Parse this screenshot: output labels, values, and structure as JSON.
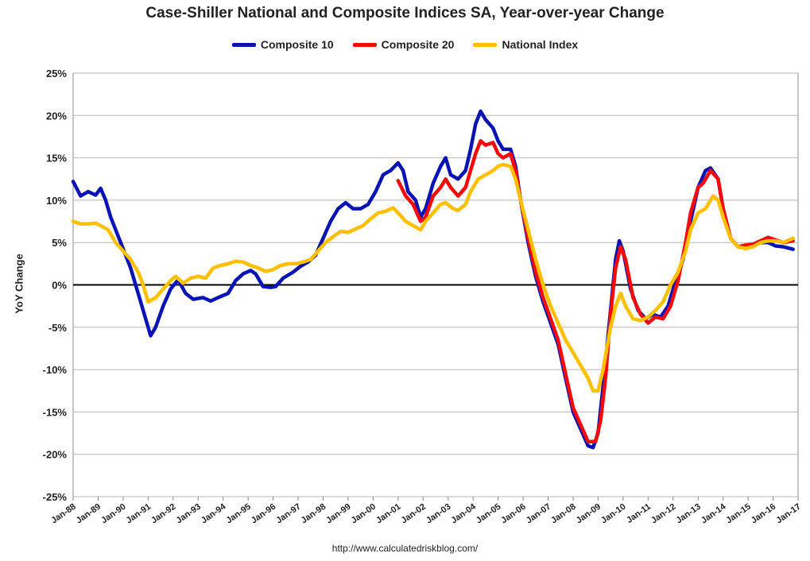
{
  "chart_data": {
    "type": "line",
    "title": "Case-Shiller National and Composite Indices SA, Year-over-year Change",
    "ylabel": "YoY Change",
    "xlabel": "",
    "source": "http://www.calculatedriskblog.com/",
    "ylim": [
      -25,
      25
    ],
    "xlim": [
      1988.0,
      2017.0
    ],
    "y_ticks": [
      "25%",
      "20%",
      "15%",
      "10%",
      "5%",
      "0%",
      "-5%",
      "-10%",
      "-15%",
      "-20%",
      "-25%"
    ],
    "x_ticks": [
      "Jan-88",
      "Jan-89",
      "Jan-90",
      "Jan-91",
      "Jan-92",
      "Jan-93",
      "Jan-94",
      "Jan-95",
      "Jan-96",
      "Jan-97",
      "Jan-98",
      "Jan-99",
      "Jan-00",
      "Jan-01",
      "Jan-02",
      "Jan-03",
      "Jan-04",
      "Jan-05",
      "Jan-06",
      "Jan-07",
      "Jan-08",
      "Jan-09",
      "Jan-10",
      "Jan-11",
      "Jan-12",
      "Jan-13",
      "Jan-14",
      "Jan-15",
      "Jan-16",
      "Jan-17"
    ],
    "grid": {
      "horizontal": true,
      "vertical": false
    },
    "legend_position": "top-center",
    "series": [
      {
        "name": "Composite 10",
        "color": "#0a14b4",
        "points": [
          [
            1988.0,
            12.2
          ],
          [
            1988.3,
            10.5
          ],
          [
            1988.6,
            11.0
          ],
          [
            1988.9,
            10.6
          ],
          [
            1989.1,
            11.4
          ],
          [
            1989.3,
            10.0
          ],
          [
            1989.5,
            8.0
          ],
          [
            1989.9,
            5.0
          ],
          [
            1990.3,
            2.0
          ],
          [
            1990.6,
            -1.0
          ],
          [
            1990.9,
            -4.0
          ],
          [
            1991.1,
            -6.0
          ],
          [
            1991.3,
            -5.0
          ],
          [
            1991.6,
            -2.5
          ],
          [
            1991.9,
            -0.5
          ],
          [
            1992.2,
            0.6
          ],
          [
            1992.5,
            -1.0
          ],
          [
            1992.8,
            -1.7
          ],
          [
            1993.2,
            -1.5
          ],
          [
            1993.5,
            -1.9
          ],
          [
            1993.8,
            -1.5
          ],
          [
            1994.2,
            -1.0
          ],
          [
            1994.5,
            0.5
          ],
          [
            1994.8,
            1.3
          ],
          [
            1995.1,
            1.7
          ],
          [
            1995.3,
            1.3
          ],
          [
            1995.6,
            -0.2
          ],
          [
            1995.9,
            -0.3
          ],
          [
            1996.1,
            -0.2
          ],
          [
            1996.4,
            0.8
          ],
          [
            1996.8,
            1.5
          ],
          [
            1997.1,
            2.2
          ],
          [
            1997.4,
            2.7
          ],
          [
            1997.7,
            3.5
          ],
          [
            1998.0,
            5.5
          ],
          [
            1998.3,
            7.5
          ],
          [
            1998.6,
            9.0
          ],
          [
            1998.9,
            9.7
          ],
          [
            1999.2,
            9.0
          ],
          [
            1999.5,
            9.0
          ],
          [
            1999.8,
            9.5
          ],
          [
            2000.1,
            11.0
          ],
          [
            2000.4,
            13.0
          ],
          [
            2000.7,
            13.5
          ],
          [
            2001.0,
            14.4
          ],
          [
            2001.2,
            13.5
          ],
          [
            2001.4,
            11.0
          ],
          [
            2001.7,
            10.0
          ],
          [
            2001.9,
            8.0
          ],
          [
            2002.1,
            9.0
          ],
          [
            2002.4,
            12.0
          ],
          [
            2002.7,
            14.0
          ],
          [
            2002.9,
            15.0
          ],
          [
            2003.1,
            13.0
          ],
          [
            2003.4,
            12.5
          ],
          [
            2003.7,
            13.5
          ],
          [
            2003.9,
            16.0
          ],
          [
            2004.1,
            19.0
          ],
          [
            2004.3,
            20.5
          ],
          [
            2004.5,
            19.5
          ],
          [
            2004.8,
            18.5
          ],
          [
            2005.0,
            17.0
          ],
          [
            2005.2,
            16.0
          ],
          [
            2005.5,
            16.0
          ],
          [
            2005.7,
            14.0
          ],
          [
            2005.9,
            10.0
          ],
          [
            2006.2,
            5.0
          ],
          [
            2006.5,
            1.0
          ],
          [
            2006.8,
            -2.0
          ],
          [
            2007.1,
            -4.5
          ],
          [
            2007.4,
            -7.0
          ],
          [
            2007.7,
            -11.0
          ],
          [
            2008.0,
            -15.0
          ],
          [
            2008.3,
            -17.0
          ],
          [
            2008.6,
            -19.0
          ],
          [
            2008.8,
            -19.2
          ],
          [
            2009.0,
            -17.5
          ],
          [
            2009.2,
            -12.0
          ],
          [
            2009.5,
            -3.0
          ],
          [
            2009.7,
            3.0
          ],
          [
            2009.85,
            5.2
          ],
          [
            2010.0,
            4.0
          ],
          [
            2010.3,
            -0.5
          ],
          [
            2010.6,
            -3.0
          ],
          [
            2010.9,
            -4.0
          ],
          [
            2011.2,
            -3.5
          ],
          [
            2011.5,
            -3.8
          ],
          [
            2011.8,
            -2.5
          ],
          [
            2012.1,
            0.5
          ],
          [
            2012.4,
            3.0
          ],
          [
            2012.7,
            7.5
          ],
          [
            2013.0,
            11.5
          ],
          [
            2013.3,
            13.5
          ],
          [
            2013.5,
            13.8
          ],
          [
            2013.8,
            12.5
          ],
          [
            2014.0,
            9.0
          ],
          [
            2014.3,
            5.5
          ],
          [
            2014.6,
            4.5
          ],
          [
            2014.9,
            4.5
          ],
          [
            2015.2,
            4.6
          ],
          [
            2015.5,
            5.0
          ],
          [
            2015.8,
            5.0
          ],
          [
            2016.1,
            4.6
          ],
          [
            2016.4,
            4.5
          ],
          [
            2016.8,
            4.2
          ]
        ]
      },
      {
        "name": "Composite 20",
        "color": "#f50a0a",
        "points": [
          [
            2001.0,
            12.3
          ],
          [
            2001.3,
            10.5
          ],
          [
            2001.6,
            9.5
          ],
          [
            2001.9,
            7.5
          ],
          [
            2002.1,
            8.0
          ],
          [
            2002.4,
            10.5
          ],
          [
            2002.7,
            11.5
          ],
          [
            2002.9,
            12.5
          ],
          [
            2003.1,
            11.5
          ],
          [
            2003.4,
            10.5
          ],
          [
            2003.7,
            11.5
          ],
          [
            2003.9,
            13.5
          ],
          [
            2004.1,
            15.5
          ],
          [
            2004.3,
            17.0
          ],
          [
            2004.5,
            16.5
          ],
          [
            2004.8,
            16.8
          ],
          [
            2005.0,
            15.5
          ],
          [
            2005.2,
            15.0
          ],
          [
            2005.5,
            15.5
          ],
          [
            2005.7,
            13.5
          ],
          [
            2005.9,
            10.0
          ],
          [
            2006.2,
            5.5
          ],
          [
            2006.5,
            1.5
          ],
          [
            2006.8,
            -1.5
          ],
          [
            2007.1,
            -4.0
          ],
          [
            2007.4,
            -6.5
          ],
          [
            2007.7,
            -10.5
          ],
          [
            2008.0,
            -14.5
          ],
          [
            2008.3,
            -16.5
          ],
          [
            2008.6,
            -18.5
          ],
          [
            2008.9,
            -18.5
          ],
          [
            2009.1,
            -16.0
          ],
          [
            2009.3,
            -11.0
          ],
          [
            2009.5,
            -3.5
          ],
          [
            2009.7,
            2.0
          ],
          [
            2009.9,
            4.5
          ],
          [
            2010.1,
            3.0
          ],
          [
            2010.4,
            -1.5
          ],
          [
            2010.7,
            -3.5
          ],
          [
            2011.0,
            -4.5
          ],
          [
            2011.3,
            -3.8
          ],
          [
            2011.6,
            -4.0
          ],
          [
            2011.9,
            -2.5
          ],
          [
            2012.2,
            0.5
          ],
          [
            2012.5,
            5.0
          ],
          [
            2012.7,
            8.5
          ],
          [
            2013.0,
            11.5
          ],
          [
            2013.2,
            12.0
          ],
          [
            2013.5,
            13.5
          ],
          [
            2013.8,
            12.5
          ],
          [
            2014.0,
            9.0
          ],
          [
            2014.3,
            5.5
          ],
          [
            2014.6,
            4.5
          ],
          [
            2014.9,
            4.7
          ],
          [
            2015.2,
            4.8
          ],
          [
            2015.5,
            5.2
          ],
          [
            2015.8,
            5.6
          ],
          [
            2016.1,
            5.3
          ],
          [
            2016.4,
            5.0
          ],
          [
            2016.8,
            5.2
          ]
        ]
      },
      {
        "name": "National Index",
        "color": "#ffc000",
        "points": [
          [
            1988.0,
            7.5
          ],
          [
            1988.3,
            7.2
          ],
          [
            1988.6,
            7.2
          ],
          [
            1988.9,
            7.3
          ],
          [
            1989.1,
            7.0
          ],
          [
            1989.4,
            6.5
          ],
          [
            1989.7,
            5.0
          ],
          [
            1990.0,
            4.0
          ],
          [
            1990.3,
            3.0
          ],
          [
            1990.6,
            1.5
          ],
          [
            1990.8,
            0.0
          ],
          [
            1991.0,
            -2.0
          ],
          [
            1991.3,
            -1.5
          ],
          [
            1991.6,
            -0.5
          ],
          [
            1991.9,
            0.5
          ],
          [
            1992.1,
            1.0
          ],
          [
            1992.4,
            0.2
          ],
          [
            1992.7,
            0.8
          ],
          [
            1993.0,
            1.0
          ],
          [
            1993.3,
            0.8
          ],
          [
            1993.6,
            2.0
          ],
          [
            1993.9,
            2.3
          ],
          [
            1994.2,
            2.5
          ],
          [
            1994.5,
            2.8
          ],
          [
            1994.8,
            2.7
          ],
          [
            1995.1,
            2.3
          ],
          [
            1995.4,
            2.0
          ],
          [
            1995.7,
            1.6
          ],
          [
            1996.0,
            1.8
          ],
          [
            1996.3,
            2.3
          ],
          [
            1996.6,
            2.5
          ],
          [
            1996.9,
            2.5
          ],
          [
            1997.2,
            2.7
          ],
          [
            1997.5,
            3.0
          ],
          [
            1997.8,
            4.0
          ],
          [
            1998.1,
            5.0
          ],
          [
            1998.4,
            5.7
          ],
          [
            1998.7,
            6.3
          ],
          [
            1999.0,
            6.2
          ],
          [
            1999.3,
            6.6
          ],
          [
            1999.6,
            7.0
          ],
          [
            1999.9,
            7.8
          ],
          [
            2000.2,
            8.5
          ],
          [
            2000.5,
            8.7
          ],
          [
            2000.8,
            9.1
          ],
          [
            2001.0,
            8.5
          ],
          [
            2001.3,
            7.5
          ],
          [
            2001.6,
            7.0
          ],
          [
            2001.9,
            6.5
          ],
          [
            2002.1,
            7.5
          ],
          [
            2002.4,
            8.5
          ],
          [
            2002.7,
            9.5
          ],
          [
            2002.9,
            9.7
          ],
          [
            2003.2,
            9.0
          ],
          [
            2003.4,
            8.8
          ],
          [
            2003.7,
            9.5
          ],
          [
            2003.9,
            11.0
          ],
          [
            2004.2,
            12.5
          ],
          [
            2004.5,
            13.0
          ],
          [
            2004.8,
            13.5
          ],
          [
            2005.0,
            14.0
          ],
          [
            2005.2,
            14.2
          ],
          [
            2005.5,
            14.0
          ],
          [
            2005.7,
            12.5
          ],
          [
            2005.9,
            10.0
          ],
          [
            2006.2,
            6.5
          ],
          [
            2006.5,
            3.0
          ],
          [
            2006.8,
            0.0
          ],
          [
            2007.1,
            -2.5
          ],
          [
            2007.4,
            -4.5
          ],
          [
            2007.7,
            -6.5
          ],
          [
            2008.0,
            -8.0
          ],
          [
            2008.3,
            -9.5
          ],
          [
            2008.6,
            -11.0
          ],
          [
            2008.8,
            -12.5
          ],
          [
            2009.0,
            -12.5
          ],
          [
            2009.2,
            -10.0
          ],
          [
            2009.5,
            -5.0
          ],
          [
            2009.7,
            -2.5
          ],
          [
            2009.9,
            -1.0
          ],
          [
            2010.1,
            -2.5
          ],
          [
            2010.4,
            -4.0
          ],
          [
            2010.7,
            -4.2
          ],
          [
            2011.0,
            -3.8
          ],
          [
            2011.3,
            -3.0
          ],
          [
            2011.6,
            -2.0
          ],
          [
            2011.9,
            0.0
          ],
          [
            2012.2,
            1.5
          ],
          [
            2012.5,
            4.0
          ],
          [
            2012.7,
            6.5
          ],
          [
            2013.0,
            8.5
          ],
          [
            2013.3,
            9.0
          ],
          [
            2013.6,
            10.5
          ],
          [
            2013.8,
            10.0
          ],
          [
            2014.0,
            8.0
          ],
          [
            2014.3,
            5.5
          ],
          [
            2014.6,
            4.5
          ],
          [
            2014.9,
            4.3
          ],
          [
            2015.2,
            4.5
          ],
          [
            2015.5,
            5.0
          ],
          [
            2015.8,
            5.2
          ],
          [
            2016.1,
            5.2
          ],
          [
            2016.4,
            5.0
          ],
          [
            2016.8,
            5.5
          ]
        ]
      }
    ]
  }
}
